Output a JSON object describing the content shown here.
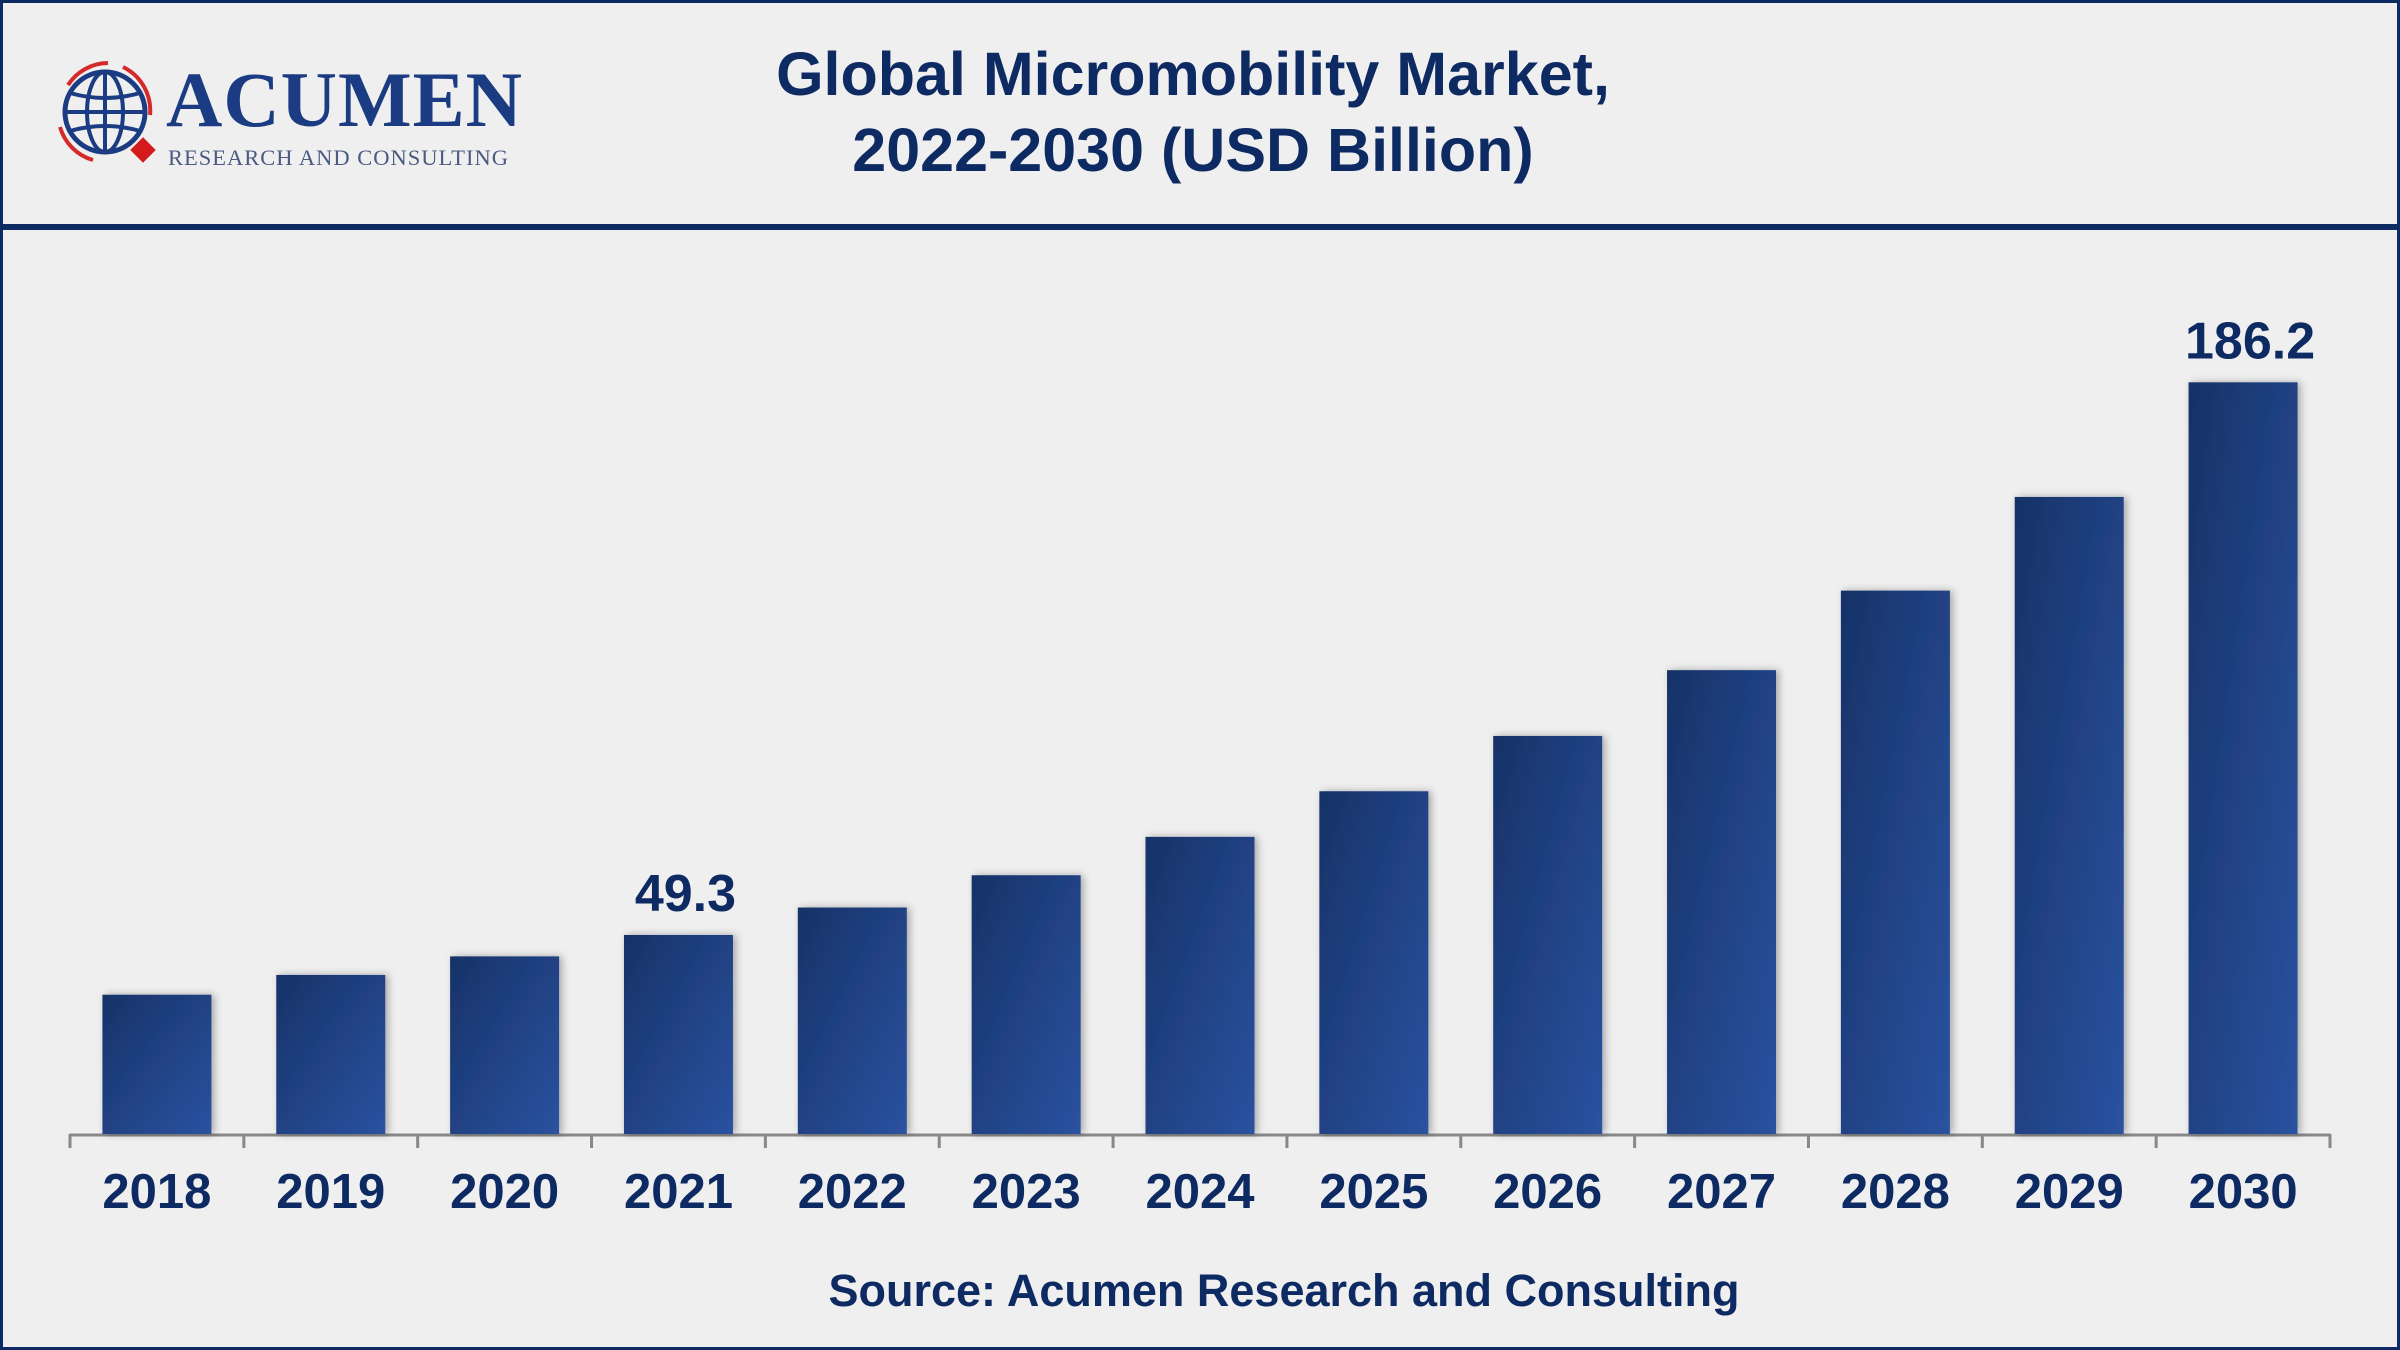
{
  "logo": {
    "word": "ACUMEN",
    "tagline": "RESEARCH AND CONSULTING"
  },
  "title_lines": [
    "Global Micromobility Market,",
    "2022-2030 (USD Billion)"
  ],
  "source": "Source: Acumen Research and Consulting",
  "colors": {
    "bar_dark": "#173268",
    "bar_light": "#2a52a0",
    "text": "#0d2a63",
    "axis": "#888888"
  },
  "chart_data": {
    "type": "bar",
    "title": "Global Micromobility Market, 2022-2030 (USD Billion)",
    "categories": [
      "2018",
      "2019",
      "2020",
      "2021",
      "2022",
      "2023",
      "2024",
      "2025",
      "2026",
      "2027",
      "2028",
      "2029",
      "2030"
    ],
    "values": [
      34.5,
      39.4,
      44.0,
      49.3,
      56.1,
      64.1,
      73.6,
      84.9,
      98.6,
      114.9,
      134.6,
      157.8,
      186.2
    ],
    "data_labels": {
      "2021": "49.3",
      "2030": "186.2"
    },
    "xlabel": "",
    "ylabel": "",
    "ylim": [
      0,
      200
    ],
    "grid": false,
    "legend": "none"
  }
}
